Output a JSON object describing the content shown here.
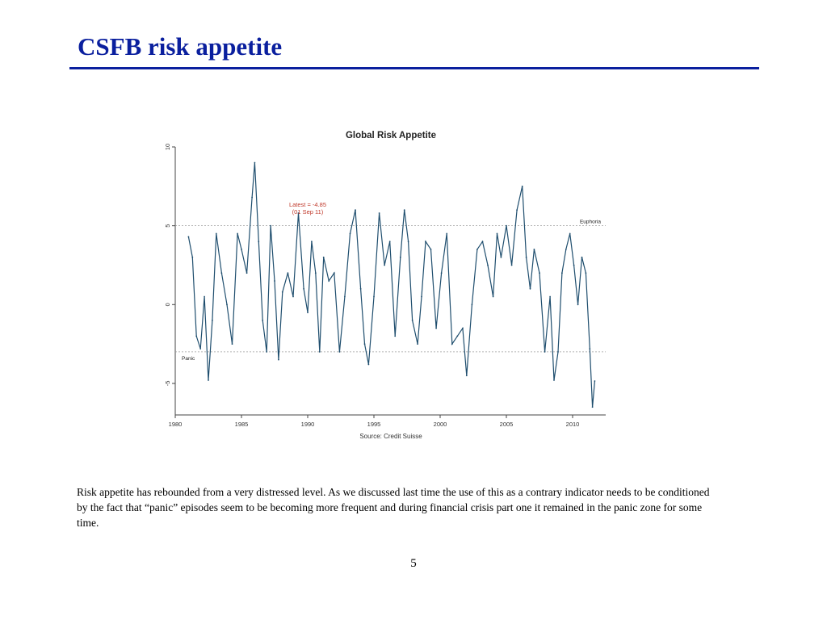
{
  "slide": {
    "title": "CSFB risk appetite",
    "body": "Risk appetite has rebounded from a very distressed level. As we discussed last time the use of this as a contrary indicator needs to be conditioned by the fact that “panic” episodes seem to be becoming more frequent and during financial crisis part one it remained in the panic zone for some time.",
    "page_number": "5"
  },
  "colors": {
    "title": "#0a1f9e",
    "series": "#1f4e6e",
    "annotation": "#c0392b",
    "reference": "#999999"
  },
  "chart_data": {
    "type": "line",
    "title": "Global Risk Appetite",
    "source": "Source: Credit Suisse",
    "xlabel": "",
    "ylabel": "",
    "xlim": [
      1980,
      2012.5
    ],
    "ylim": [
      -7,
      10
    ],
    "x_ticks": [
      1980,
      1985,
      1990,
      1995,
      2000,
      2005,
      2010
    ],
    "y_ticks": [
      -5,
      0,
      5,
      10
    ],
    "grid": false,
    "reference_lines": [
      {
        "label": "Euphoria",
        "y": 5
      },
      {
        "label": "Panic",
        "y": -3
      }
    ],
    "annotation": {
      "line1": "Latest = -4.85",
      "line2": "(01 Sep 11)",
      "x": 1990,
      "y": 5.5
    },
    "series": [
      {
        "x": [
          1981.0,
          1981.3,
          1981.6,
          1981.9,
          1982.2,
          1982.5,
          1982.8,
          1983.1,
          1983.5,
          1983.9,
          1984.3,
          1984.7,
          1985.0,
          1985.4,
          1985.8,
          1986.0,
          1986.3,
          1986.6,
          1986.9,
          1987.2,
          1987.5,
          1987.8,
          1988.1,
          1988.5,
          1988.9,
          1989.3,
          1989.7,
          1990.0,
          1990.3,
          1990.6,
          1990.9,
          1991.2,
          1991.6,
          1992.0,
          1992.4,
          1992.8,
          1993.2,
          1993.6,
          1994.0,
          1994.3,
          1994.6,
          1995.0,
          1995.4,
          1995.8,
          1996.2,
          1996.6,
          1997.0,
          1997.3,
          1997.6,
          1997.9,
          1998.3,
          1998.6,
          1998.9,
          1999.3,
          1999.7,
          2000.1,
          2000.5,
          2000.9,
          2001.3,
          2001.7,
          2002.0,
          2002.4,
          2002.8,
          2003.2,
          2003.6,
          2004.0,
          2004.3,
          2004.6,
          2005.0,
          2005.4,
          2005.8,
          2006.2,
          2006.5,
          2006.8,
          2007.1,
          2007.5,
          2007.9,
          2008.3,
          2008.6,
          2008.9,
          2009.2,
          2009.5,
          2009.8,
          2010.1,
          2010.4,
          2010.7,
          2011.0,
          2011.3,
          2011.5,
          2011.67
        ],
        "values": [
          4.3,
          3.0,
          -2.0,
          -2.8,
          0.5,
          -4.8,
          -1.0,
          4.5,
          2.0,
          0.0,
          -2.5,
          4.5,
          3.5,
          2.0,
          6.8,
          9.0,
          4.0,
          -1.0,
          -3.0,
          5.0,
          1.5,
          -3.5,
          0.8,
          2.0,
          0.5,
          5.8,
          1.0,
          -0.5,
          4.0,
          2.0,
          -3.0,
          3.0,
          1.5,
          2.0,
          -3.0,
          0.5,
          4.5,
          6.0,
          1.0,
          -2.5,
          -3.8,
          0.5,
          5.8,
          2.5,
          4.0,
          -2.0,
          3.0,
          6.0,
          4.0,
          -1.0,
          -2.5,
          0.5,
          4.0,
          3.5,
          -1.5,
          2.0,
          4.5,
          -2.5,
          -2.0,
          -1.5,
          -4.5,
          0.0,
          3.5,
          4.0,
          2.5,
          0.5,
          4.5,
          3.0,
          5.0,
          2.5,
          6.0,
          7.5,
          3.0,
          1.0,
          3.5,
          2.0,
          -3.0,
          0.5,
          -4.8,
          -3.0,
          2.0,
          3.5,
          4.5,
          2.5,
          0.0,
          3.0,
          2.0,
          -2.8,
          -6.5,
          -4.85
        ]
      }
    ]
  }
}
